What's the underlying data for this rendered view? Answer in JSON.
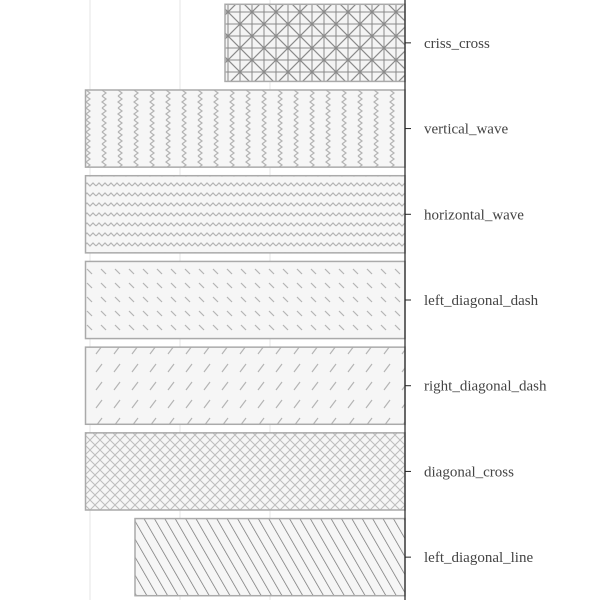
{
  "chart_data": {
    "type": "bar",
    "orientation": "horizontal",
    "y_axis_side": "right",
    "categories": [
      "criss_cross",
      "vertical_wave",
      "horizontal_wave",
      "left_diagonal_dash",
      "right_diagonal_dash",
      "diagonal_cross",
      "left_diagonal_line"
    ],
    "values": [
      40,
      71,
      71,
      71,
      71,
      71,
      60
    ],
    "patterns": [
      "criss-cross",
      "vertical-wave",
      "horizontal-wave",
      "left-diagonal-dash",
      "right-diagonal-dash",
      "diagonal-cross",
      "left-diagonal-line"
    ],
    "xlim": [
      -10,
      80
    ],
    "grid": true,
    "colors": {
      "bar_stroke": "#aaaaaa",
      "pattern": "#b4b4b4",
      "pattern_dark": "#8a8a8a",
      "bar_fill": "#f6f6f6",
      "axis": "#222222",
      "label": "#444444"
    }
  }
}
